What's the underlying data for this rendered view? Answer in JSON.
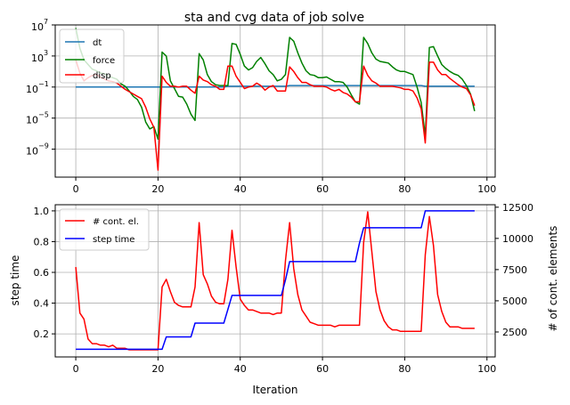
{
  "figure_title": "sta and cvg data of job solve",
  "colors": {
    "dt": "#1f77b4",
    "force": "#008000",
    "disp": "#ff0000",
    "cont": "#ff0000",
    "step": "#0000ff",
    "grid": "#b0b0b0"
  },
  "chart_data": [
    {
      "type": "line",
      "title": "sta and cvg data of job solve",
      "yscale": "log",
      "xlim": [
        -5,
        102
      ],
      "ylim_exp": [
        -12.6,
        7
      ],
      "xticks": [
        0,
        20,
        40,
        60,
        80,
        100
      ],
      "xtick_labels": [
        "0",
        "20",
        "40",
        "60",
        "80",
        "100"
      ],
      "yticks_exp": [
        -9,
        -5,
        -1,
        3,
        7
      ],
      "ytick_labels": [
        "10",
        "10",
        "10",
        "10",
        "10"
      ],
      "ytick_sups": [
        "−9",
        "−5",
        "−1",
        "3",
        "7"
      ],
      "grid": true,
      "legend": "top-left",
      "x": [
        0,
        1,
        2,
        3,
        4,
        5,
        6,
        7,
        8,
        9,
        10,
        11,
        12,
        13,
        14,
        15,
        16,
        17,
        18,
        19,
        20,
        21,
        22,
        23,
        24,
        25,
        26,
        27,
        28,
        29,
        30,
        31,
        32,
        33,
        34,
        35,
        36,
        37,
        38,
        39,
        40,
        41,
        42,
        43,
        44,
        45,
        46,
        47,
        48,
        49,
        50,
        51,
        52,
        53,
        54,
        55,
        56,
        57,
        58,
        59,
        60,
        61,
        62,
        63,
        64,
        65,
        66,
        67,
        68,
        69,
        70,
        71,
        72,
        73,
        74,
        75,
        76,
        77,
        78,
        79,
        80,
        81,
        82,
        83,
        84,
        85,
        86,
        87,
        88,
        89,
        90,
        91,
        92,
        93,
        94,
        95,
        96,
        97
      ],
      "series": [
        {
          "name": "dt",
          "color": "#1f77b4",
          "log10_values": [
            -1.0,
            -1.0,
            -1.0,
            -1.0,
            -1.0,
            -1.0,
            -1.0,
            -1.0,
            -1.0,
            -1.0,
            -1.0,
            -1.0,
            -1.0,
            -1.0,
            -1.0,
            -1.0,
            -1.0,
            -1.0,
            -1.0,
            -1.0,
            -1.0,
            -1.0,
            -1.0,
            -1.0,
            -1.0,
            -1.0,
            -1.0,
            -1.0,
            -1.0,
            -1.0,
            -1.0,
            -1.0,
            -1.0,
            -1.0,
            -1.0,
            -1.0,
            -1.0,
            -0.9,
            -0.9,
            -0.9,
            -0.9,
            -0.9,
            -0.9,
            -0.9,
            -0.9,
            -0.9,
            -0.9,
            -0.9,
            -0.9,
            -0.9,
            -0.9,
            -0.9,
            -0.8,
            -0.8,
            -0.8,
            -0.8,
            -0.8,
            -0.8,
            -0.8,
            -0.8,
            -0.8,
            -0.8,
            -0.8,
            -0.8,
            -0.8,
            -0.8,
            -0.8,
            -0.8,
            -0.8,
            -0.8,
            -0.8,
            -0.8,
            -0.8,
            -0.8,
            -0.8,
            -0.8,
            -0.8,
            -0.8,
            -0.8,
            -0.8,
            -0.8,
            -0.8,
            -0.8,
            -0.8,
            -0.8,
            -0.9,
            -0.9,
            -0.9,
            -0.9,
            -0.9,
            -0.9,
            -0.9,
            -0.9,
            -0.9,
            -0.9,
            -0.9,
            -0.9,
            -0.9
          ]
        },
        {
          "name": "force",
          "color": "#008000",
          "log10_values": [
            6.6,
            4.0,
            2.5,
            1.9,
            1.3,
            1.1,
            0.8,
            0.7,
            0.4,
            0.2,
            0.0,
            -0.6,
            -0.9,
            -1.5,
            -2.2,
            -2.6,
            -3.6,
            -5.5,
            -6.4,
            -6.1,
            -7.7,
            3.5,
            3.0,
            -0.2,
            -1.2,
            -2.2,
            -2.3,
            -3.2,
            -4.5,
            -5.3,
            3.3,
            2.5,
            0.6,
            -0.3,
            -0.7,
            -0.8,
            -0.8,
            -0.8,
            4.6,
            4.5,
            3.2,
            1.7,
            1.2,
            1.5,
            2.3,
            2.8,
            2.0,
            1.1,
            0.6,
            -0.2,
            0.0,
            0.6,
            5.4,
            4.9,
            3.4,
            2.1,
            1.1,
            0.6,
            0.5,
            0.2,
            0.2,
            0.3,
            0.0,
            -0.3,
            -0.3,
            -0.4,
            -1.0,
            -2.0,
            -2.9,
            -3.2,
            5.4,
            4.6,
            3.4,
            2.6,
            2.3,
            2.2,
            2.1,
            1.6,
            1.2,
            1.0,
            1.0,
            0.8,
            0.6,
            -1.0,
            -3.0,
            -7.3,
            4.1,
            4.2,
            3.0,
            1.9,
            1.4,
            1.0,
            0.7,
            0.5,
            0.0,
            -0.8,
            -1.9,
            -4.1
          ]
        },
        {
          "name": "disp",
          "color": "#ff0000",
          "log10_values": [
            2.5,
            0.8,
            -0.2,
            0.2,
            0.5,
            0.6,
            0.3,
            0.0,
            -0.2,
            -0.3,
            -0.5,
            -0.9,
            -1.3,
            -1.6,
            -1.9,
            -2.2,
            -2.5,
            -3.6,
            -5.1,
            -6.2,
            -11.7,
            0.4,
            -0.4,
            -0.9,
            -0.9,
            -1.0,
            -0.9,
            -0.9,
            -1.4,
            -1.8,
            0.4,
            -0.1,
            -0.3,
            -0.7,
            -0.9,
            -1.3,
            -1.3,
            1.7,
            1.7,
            0.4,
            -0.4,
            -1.2,
            -1.0,
            -0.9,
            -0.5,
            -0.8,
            -1.4,
            -1.0,
            -0.8,
            -1.5,
            -1.5,
            -1.5,
            1.6,
            1.0,
            0.2,
            -0.4,
            -0.4,
            -0.7,
            -0.9,
            -0.9,
            -0.9,
            -1.0,
            -1.3,
            -1.5,
            -1.3,
            -1.7,
            -1.9,
            -2.3,
            -2.9,
            -2.9,
            1.7,
            0.5,
            -0.2,
            -0.5,
            -0.9,
            -0.9,
            -0.9,
            -0.9,
            -1.0,
            -1.1,
            -1.3,
            -1.3,
            -1.5,
            -2.4,
            -3.8,
            -8.2,
            2.2,
            2.2,
            1.2,
            0.6,
            0.6,
            0.1,
            -0.3,
            -0.7,
            -1.0,
            -1.2,
            -2.0,
            -3.4
          ]
        }
      ]
    },
    {
      "type": "line",
      "xlabel": "Iteration",
      "ylabel": "step time",
      "ylabel_right": "# of cont. elements",
      "xlim": [
        -5,
        102
      ],
      "ylim": [
        0.05,
        1.04
      ],
      "ylim_right": [
        500,
        12700
      ],
      "xticks": [
        0,
        20,
        40,
        60,
        80,
        100
      ],
      "xtick_labels": [
        "0",
        "20",
        "40",
        "60",
        "80",
        "100"
      ],
      "yticks": [
        0.2,
        0.4,
        0.6,
        0.8,
        1.0
      ],
      "ytick_labels": [
        "0.2",
        "0.4",
        "0.6",
        "0.8",
        "1.0"
      ],
      "yticks_right": [
        2500,
        5000,
        7500,
        10000,
        12500
      ],
      "ytick_labels_right": [
        "2500",
        "5000",
        "7500",
        "10000",
        "12500"
      ],
      "grid": true,
      "legend": "top-left",
      "x": [
        0,
        1,
        2,
        3,
        4,
        5,
        6,
        7,
        8,
        9,
        10,
        11,
        12,
        13,
        14,
        15,
        16,
        17,
        18,
        19,
        20,
        21,
        22,
        23,
        24,
        25,
        26,
        27,
        28,
        29,
        30,
        31,
        32,
        33,
        34,
        35,
        36,
        37,
        38,
        39,
        40,
        41,
        42,
        43,
        44,
        45,
        46,
        47,
        48,
        49,
        50,
        51,
        52,
        53,
        54,
        55,
        56,
        57,
        58,
        59,
        60,
        61,
        62,
        63,
        64,
        65,
        66,
        67,
        68,
        69,
        70,
        71,
        72,
        73,
        74,
        75,
        76,
        77,
        78,
        79,
        80,
        81,
        82,
        83,
        84,
        85,
        86,
        87,
        88,
        89,
        90,
        91,
        92,
        93,
        94,
        95,
        96,
        97
      ],
      "series": [
        {
          "name": "# cont. el.",
          "color": "#ff0000",
          "axis": "right",
          "values": [
            0.64,
            0.34,
            0.3,
            0.17,
            0.14,
            0.14,
            0.13,
            0.13,
            0.12,
            0.13,
            0.11,
            0.11,
            0.11,
            0.1,
            0.1,
            0.1,
            0.1,
            0.1,
            0.1,
            0.1,
            0.1,
            0.51,
            0.56,
            0.48,
            0.41,
            0.39,
            0.38,
            0.38,
            0.38,
            0.51,
            0.93,
            0.59,
            0.53,
            0.45,
            0.41,
            0.4,
            0.4,
            0.56,
            0.88,
            0.64,
            0.43,
            0.39,
            0.36,
            0.36,
            0.35,
            0.34,
            0.34,
            0.34,
            0.33,
            0.34,
            0.34,
            0.68,
            0.93,
            0.63,
            0.46,
            0.36,
            0.32,
            0.28,
            0.27,
            0.26,
            0.26,
            0.26,
            0.26,
            0.25,
            0.26,
            0.26,
            0.26,
            0.26,
            0.26,
            0.26,
            0.8,
            1.0,
            0.74,
            0.48,
            0.36,
            0.29,
            0.25,
            0.23,
            0.23,
            0.22,
            0.22,
            0.22,
            0.22,
            0.22,
            0.22,
            0.72,
            0.97,
            0.78,
            0.46,
            0.35,
            0.28,
            0.25,
            0.25,
            0.25,
            0.24,
            0.24,
            0.24,
            0.24
          ]
        },
        {
          "name": "step time",
          "color": "#0000ff",
          "axis": "left",
          "values": [
            0.1,
            0.1,
            0.1,
            0.1,
            0.1,
            0.1,
            0.1,
            0.1,
            0.1,
            0.1,
            0.1,
            0.1,
            0.1,
            0.1,
            0.1,
            0.1,
            0.1,
            0.1,
            0.1,
            0.1,
            0.1,
            0.1,
            0.18,
            0.18,
            0.18,
            0.18,
            0.18,
            0.18,
            0.18,
            0.27,
            0.27,
            0.27,
            0.27,
            0.27,
            0.27,
            0.27,
            0.27,
            0.36,
            0.45,
            0.45,
            0.45,
            0.45,
            0.45,
            0.45,
            0.45,
            0.45,
            0.45,
            0.45,
            0.45,
            0.45,
            0.45,
            0.55,
            0.67,
            0.67,
            0.67,
            0.67,
            0.67,
            0.67,
            0.67,
            0.67,
            0.67,
            0.67,
            0.67,
            0.67,
            0.67,
            0.67,
            0.67,
            0.67,
            0.67,
            0.79,
            0.89,
            0.89,
            0.89,
            0.89,
            0.89,
            0.89,
            0.89,
            0.89,
            0.89,
            0.89,
            0.89,
            0.89,
            0.89,
            0.89,
            0.89,
            1.0,
            1.0,
            1.0,
            1.0,
            1.0,
            1.0,
            1.0,
            1.0,
            1.0,
            1.0,
            1.0,
            1.0,
            1.0
          ]
        }
      ]
    }
  ]
}
